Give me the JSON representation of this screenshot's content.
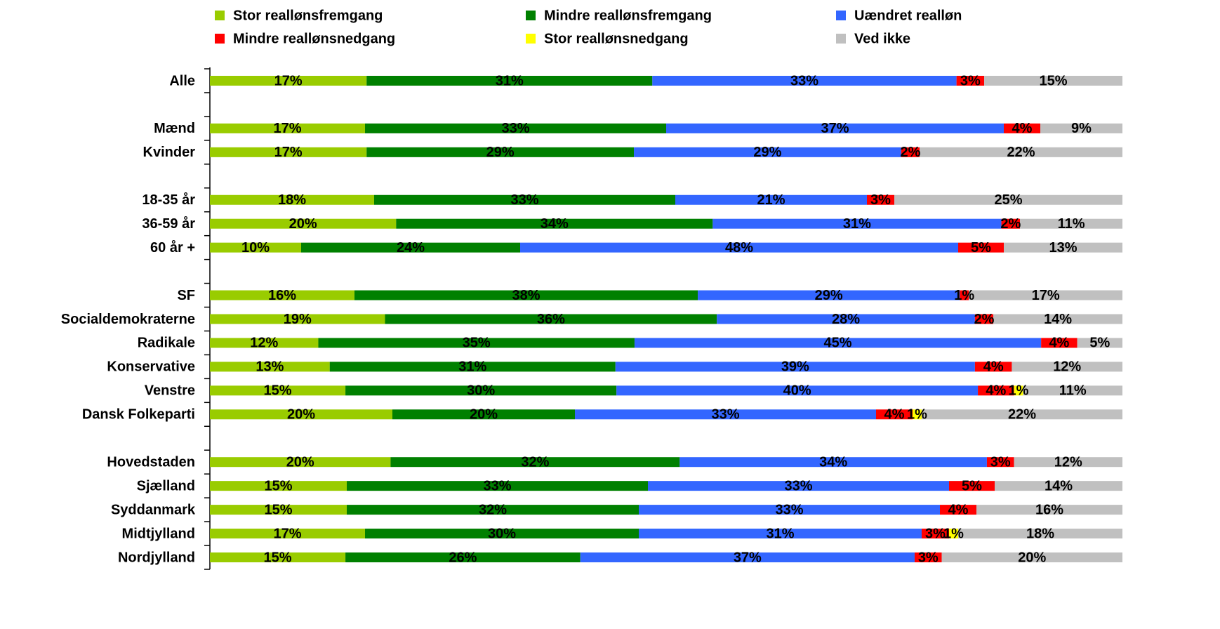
{
  "chart_data": {
    "type": "stacked-bar-horizontal",
    "categories": [
      "Alle",
      null,
      "Mænd",
      "Kvinder",
      null,
      "18-35 år",
      "36-59 år",
      "60 år +",
      null,
      "SF",
      "Socialdemokraterne",
      "Radikale",
      "Konservative",
      "Venstre",
      "Dansk Folkeparti",
      null,
      "Hovedstaden",
      "Sjælland",
      "Syddanmark",
      "Midtjylland",
      "Nordjylland"
    ],
    "series": [
      {
        "name": "Stor reallønsfremgang",
        "color": "#99cc00",
        "values": [
          17,
          null,
          17,
          17,
          null,
          18,
          20,
          10,
          null,
          16,
          19,
          12,
          13,
          15,
          20,
          null,
          20,
          15,
          15,
          17,
          15
        ],
        "value_labels": [
          "17%",
          null,
          "17%",
          "17%",
          null,
          "18%",
          "20%",
          "10%",
          null,
          "16%",
          "19%",
          "12%",
          "13%",
          "15%",
          "20%",
          null,
          "20%",
          "15%",
          "15%",
          "17%",
          "15%"
        ]
      },
      {
        "name": "Mindre reallønsfremgang",
        "color": "#008000",
        "values": [
          31,
          null,
          33,
          29,
          null,
          33,
          34,
          24,
          null,
          38,
          36,
          35,
          31,
          30,
          20,
          null,
          32,
          33,
          32,
          30,
          26
        ],
        "value_labels": [
          "31%",
          null,
          "33%",
          "29%",
          null,
          "33%",
          "34%",
          "24%",
          null,
          "38%",
          "36%",
          "35%",
          "31%",
          "30%",
          "20%",
          null,
          "32%",
          "33%",
          "32%",
          "30%",
          "26%"
        ]
      },
      {
        "name": "Uændret realløn",
        "color": "#3366ff",
        "values": [
          33,
          null,
          37,
          29,
          null,
          21,
          31,
          48,
          null,
          29,
          28,
          45,
          39,
          40,
          33,
          null,
          34,
          33,
          33,
          31,
          37
        ],
        "value_labels": [
          "33%",
          null,
          "37%",
          "29%",
          null,
          "21%",
          "31%",
          "48%",
          null,
          "29%",
          "28%",
          "45%",
          "39%",
          "40%",
          "33%",
          null,
          "34%",
          "33%",
          "33%",
          "31%",
          "37%"
        ]
      },
      {
        "name": "Mindre reallønsnedgang",
        "color": "#ff0000",
        "values": [
          3,
          null,
          4,
          2,
          null,
          3,
          2,
          5,
          null,
          1,
          2,
          4,
          4,
          4,
          4,
          null,
          3,
          5,
          4,
          3,
          3
        ],
        "value_labels": [
          "3%",
          null,
          "4%",
          "2%",
          null,
          "3%",
          "2%",
          "5%",
          null,
          "1%",
          "2%",
          "4%",
          "4%",
          "4%",
          "4%",
          null,
          "3%",
          "5%",
          "4%",
          "3%",
          "3%"
        ]
      },
      {
        "name": "Stor reallønsnedgang",
        "color": "#ffff00",
        "values": [
          null,
          null,
          null,
          null,
          null,
          null,
          null,
          null,
          null,
          null,
          null,
          null,
          null,
          1,
          1,
          null,
          null,
          null,
          null,
          1,
          null
        ],
        "value_labels": [
          null,
          null,
          null,
          null,
          null,
          null,
          null,
          null,
          null,
          null,
          null,
          null,
          null,
          "1%",
          "1%",
          null,
          null,
          null,
          null,
          "1%",
          null
        ]
      },
      {
        "name": "Ved ikke",
        "color": "#c0c0c0",
        "values": [
          15,
          null,
          9,
          22,
          null,
          25,
          11,
          13,
          null,
          17,
          14,
          5,
          12,
          11,
          22,
          null,
          12,
          14,
          16,
          18,
          20
        ],
        "value_labels": [
          "15%",
          null,
          "9%",
          "22%",
          null,
          "25%",
          "11%",
          "13%",
          null,
          "17%",
          "14%",
          "5%",
          "12%",
          "11%",
          "22%",
          null,
          "12%",
          "14%",
          "16%",
          "18%",
          "20%"
        ]
      }
    ]
  }
}
